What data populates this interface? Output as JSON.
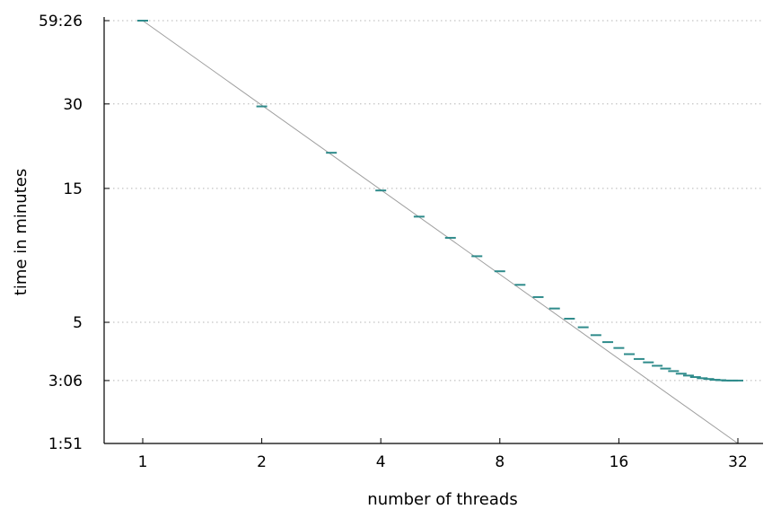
{
  "chart_data": {
    "type": "scatter",
    "title": "",
    "xlabel": "number of threads",
    "ylabel": "time in minutes",
    "x_scale": "log2",
    "y_scale": "log",
    "xlim": [
      0.8,
      38
    ],
    "ylim": [
      1.85,
      59.43
    ],
    "x_ticks": [
      {
        "value": 1,
        "label": "1"
      },
      {
        "value": 2,
        "label": "2"
      },
      {
        "value": 4,
        "label": "4"
      },
      {
        "value": 8,
        "label": "8"
      },
      {
        "value": 16,
        "label": "16"
      },
      {
        "value": 32,
        "label": "32"
      }
    ],
    "y_ticks": [
      {
        "value": 59.43,
        "label": "59:26"
      },
      {
        "value": 30,
        "label": "30"
      },
      {
        "value": 15,
        "label": "15"
      },
      {
        "value": 5,
        "label": "5"
      },
      {
        "value": 3.1,
        "label": "3:06"
      },
      {
        "value": 1.85,
        "label": "1:51"
      }
    ],
    "gridlines_y": [
      59.43,
      30,
      15,
      5,
      3.1
    ],
    "ideal_scaling": {
      "from": [
        1,
        59.43
      ],
      "to": [
        32,
        1.85
      ]
    },
    "series": [
      {
        "marker": "horizontal-dash",
        "x": [
          1,
          2,
          3,
          4,
          5,
          6,
          7,
          8,
          9,
          10,
          11,
          12,
          13,
          14,
          15,
          16,
          17,
          18,
          19,
          20,
          21,
          22,
          23,
          24,
          25,
          26,
          27,
          28,
          29,
          30,
          31,
          32
        ],
        "y": [
          59.43,
          29.4,
          20.1,
          14.75,
          11.9,
          10.0,
          8.6,
          7.6,
          6.8,
          6.15,
          5.6,
          5.15,
          4.8,
          4.5,
          4.25,
          4.05,
          3.85,
          3.7,
          3.6,
          3.5,
          3.42,
          3.35,
          3.28,
          3.23,
          3.19,
          3.16,
          3.14,
          3.12,
          3.11,
          3.1,
          3.1,
          3.1
        ]
      }
    ],
    "colors": {
      "points": "#2e8b8b",
      "ideal_line": "#9e9e9e",
      "grid": "#b5b5b5",
      "axis": "#000000"
    }
  }
}
